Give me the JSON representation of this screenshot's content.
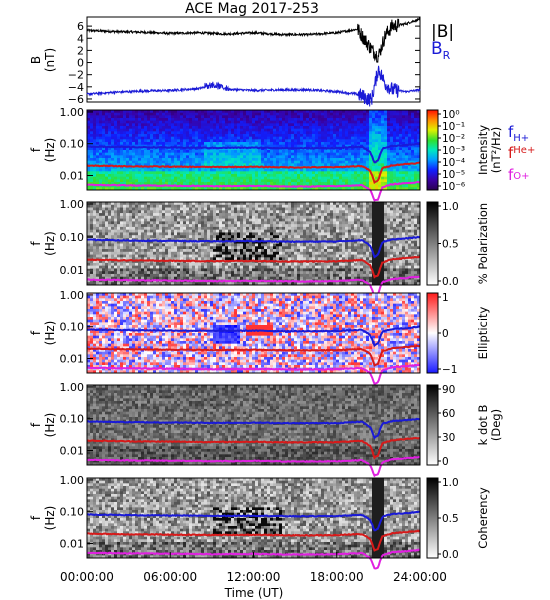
{
  "chart_data": [
    {
      "type": "line",
      "title": "ACE Mag 2017-253",
      "ylabel": "B (nT)",
      "ylim": [
        -6.5,
        7.5
      ],
      "yticks": [
        "6",
        "4",
        "2",
        "0",
        "−2",
        "−4",
        "−6"
      ],
      "legend": [
        {
          "label": "|B|",
          "color": "#000000"
        },
        {
          "label": "B",
          "sub": "R",
          "color": "#1a1ad6"
        }
      ],
      "series": [
        {
          "name": "|B|",
          "color": "#000000",
          "x_hours": [
            0,
            2,
            4,
            6,
            8,
            10,
            12,
            14,
            16,
            18,
            19.5,
            20.5,
            21,
            21.5,
            22,
            23,
            24
          ],
          "values": [
            5.3,
            5.1,
            5.0,
            4.8,
            4.9,
            4.7,
            4.9,
            4.6,
            4.6,
            4.9,
            5.5,
            2.2,
            1.0,
            4.5,
            6.0,
            6.4,
            7.2
          ]
        },
        {
          "name": "B_R",
          "color": "#1a1ad6",
          "x_hours": [
            0,
            2,
            4,
            6,
            8,
            9,
            10,
            12,
            14,
            16,
            18,
            19.5,
            20.5,
            21,
            21.5,
            22,
            23,
            24
          ],
          "values": [
            -5.2,
            -4.9,
            -4.7,
            -4.6,
            -4.3,
            -3.8,
            -4.4,
            -4.6,
            -4.5,
            -4.5,
            -4.8,
            -5.2,
            -6.2,
            -1.0,
            -3.5,
            -4.5,
            -4.8,
            -4.5
          ]
        }
      ]
    },
    {
      "type": "heatmap",
      "panel": "intensity",
      "ylabel": "f (Hz)",
      "yticks": [
        "1.00",
        "0.10",
        "0.01"
      ],
      "colorbar_label": "Intensity (nT²/Hz)",
      "colorbar_ticks": [
        "10⁰",
        "10⁻¹",
        "10⁻²",
        "10⁻³",
        "10⁻⁴",
        "10⁻⁵",
        "10⁻⁶"
      ],
      "legend": [
        {
          "label": "f",
          "sub": "H+",
          "color": "#1a1ad6"
        },
        {
          "label": "f",
          "sub": "He+",
          "color": "#d61a1a"
        },
        {
          "label": "f",
          "sub": "O+",
          "color": "#e020e0"
        }
      ]
    },
    {
      "type": "heatmap",
      "panel": "polarization",
      "ylabel": "f (Hz)",
      "yticks": [
        "1.00",
        "0.10",
        "0.01"
      ],
      "colorbar_label": "% Polarization",
      "colorbar_ticks": [
        "1.0",
        "0.5",
        "0.0"
      ]
    },
    {
      "type": "heatmap",
      "panel": "ellipticity",
      "ylabel": "f (Hz)",
      "yticks": [
        "1.00",
        "0.10",
        "0.01"
      ],
      "colorbar_label": "Ellipticity",
      "colorbar_ticks": [
        "1",
        "0",
        "−1"
      ]
    },
    {
      "type": "heatmap",
      "panel": "kdotb",
      "ylabel": "f (Hz)",
      "yticks": [
        "1.00",
        "0.10",
        "0.01"
      ],
      "colorbar_label": "k dot B (Deg)",
      "colorbar_ticks": [
        "90",
        "60",
        "30",
        "0"
      ]
    },
    {
      "type": "heatmap",
      "panel": "coherency",
      "ylabel": "f (Hz)",
      "yticks": [
        "1.00",
        "0.10",
        "0.01"
      ],
      "colorbar_label": "Coherency",
      "colorbar_ticks": [
        "1.0",
        "0.5",
        "0.0"
      ],
      "xlabel": "Time (UT)",
      "xticks": [
        "00:00:00",
        "06:00:00",
        "12:00:00",
        "18:00:00",
        "24:00:00"
      ]
    }
  ],
  "gyro": {
    "x_hours": [
      0,
      3,
      6,
      9,
      12,
      15,
      18,
      19.8,
      20.4,
      20.7,
      21.0,
      21.3,
      22,
      23,
      24
    ],
    "fH": [
      0.082,
      0.078,
      0.076,
      0.074,
      0.075,
      0.072,
      0.073,
      0.08,
      0.055,
      0.025,
      0.03,
      0.07,
      0.085,
      0.09,
      0.1
    ],
    "fHe": [
      0.0205,
      0.0195,
      0.019,
      0.0185,
      0.0188,
      0.018,
      0.0183,
      0.02,
      0.014,
      0.006,
      0.007,
      0.017,
      0.021,
      0.023,
      0.025
    ],
    "fO": [
      0.0051,
      0.0049,
      0.0048,
      0.0046,
      0.0047,
      0.0045,
      0.0046,
      0.005,
      0.0035,
      0.0016,
      0.0018,
      0.0043,
      0.0053,
      0.0057,
      0.0063
    ]
  }
}
